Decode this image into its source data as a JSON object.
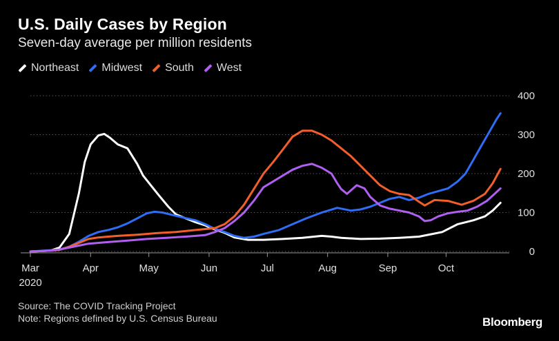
{
  "header": {
    "title": "U.S. Daily Cases by Region",
    "subtitle": "Seven-day average per million residents"
  },
  "footer": {
    "source": "Source: The COVID Tracking Project",
    "note": "Note: Regions defined by U.S. Census Bureau",
    "brand": "Bloomberg"
  },
  "chart_data": {
    "type": "line",
    "title": "U.S. Daily Cases by Region",
    "subtitle": "Seven-day average per million residents",
    "xlabel": "",
    "ylabel": "",
    "x_unit": "days since 2020-03-01",
    "xlim": [
      0,
      243
    ],
    "ylim": [
      0,
      400
    ],
    "yticks": [
      0,
      100,
      200,
      300,
      400
    ],
    "xticks": [
      {
        "day": 0,
        "label": "Mar",
        "sublabel": "2020"
      },
      {
        "day": 31,
        "label": "Apr"
      },
      {
        "day": 61,
        "label": "May"
      },
      {
        "day": 92,
        "label": "Jun"
      },
      {
        "day": 122,
        "label": "Jul"
      },
      {
        "day": 153,
        "label": "Aug"
      },
      {
        "day": 184,
        "label": "Sep"
      },
      {
        "day": 214,
        "label": "Oct"
      }
    ],
    "grid": "horizontal dotted",
    "legend_position": "top-left",
    "series": [
      {
        "name": "Northeast",
        "color": "#ffffff",
        "points": [
          [
            0,
            0
          ],
          [
            10,
            2
          ],
          [
            15,
            10
          ],
          [
            20,
            45
          ],
          [
            25,
            150
          ],
          [
            28,
            230
          ],
          [
            31,
            275
          ],
          [
            35,
            298
          ],
          [
            38,
            302
          ],
          [
            41,
            292
          ],
          [
            45,
            275
          ],
          [
            50,
            265
          ],
          [
            55,
            225
          ],
          [
            58,
            195
          ],
          [
            62,
            170
          ],
          [
            66,
            145
          ],
          [
            71,
            115
          ],
          [
            75,
            95
          ],
          [
            80,
            85
          ],
          [
            85,
            75
          ],
          [
            90,
            67
          ],
          [
            93,
            60
          ],
          [
            96,
            55
          ],
          [
            100,
            48
          ],
          [
            105,
            36
          ],
          [
            112,
            30
          ],
          [
            120,
            30
          ],
          [
            130,
            32
          ],
          [
            140,
            35
          ],
          [
            150,
            40
          ],
          [
            155,
            38
          ],
          [
            160,
            35
          ],
          [
            170,
            32
          ],
          [
            180,
            33
          ],
          [
            190,
            35
          ],
          [
            200,
            38
          ],
          [
            207,
            45
          ],
          [
            212,
            50
          ],
          [
            220,
            70
          ],
          [
            228,
            80
          ],
          [
            234,
            90
          ],
          [
            238,
            105
          ],
          [
            242,
            125
          ]
        ]
      },
      {
        "name": "Midwest",
        "color": "#2f6df6",
        "points": [
          [
            0,
            0
          ],
          [
            10,
            3
          ],
          [
            15,
            5
          ],
          [
            20,
            12
          ],
          [
            25,
            25
          ],
          [
            30,
            40
          ],
          [
            35,
            50
          ],
          [
            40,
            55
          ],
          [
            45,
            62
          ],
          [
            50,
            72
          ],
          [
            55,
            85
          ],
          [
            60,
            98
          ],
          [
            64,
            102
          ],
          [
            68,
            100
          ],
          [
            72,
            95
          ],
          [
            78,
            88
          ],
          [
            85,
            80
          ],
          [
            90,
            70
          ],
          [
            95,
            58
          ],
          [
            100,
            50
          ],
          [
            105,
            40
          ],
          [
            110,
            35
          ],
          [
            115,
            38
          ],
          [
            120,
            45
          ],
          [
            128,
            55
          ],
          [
            135,
            70
          ],
          [
            142,
            85
          ],
          [
            150,
            100
          ],
          [
            158,
            112
          ],
          [
            165,
            105
          ],
          [
            170,
            108
          ],
          [
            175,
            115
          ],
          [
            180,
            125
          ],
          [
            185,
            135
          ],
          [
            190,
            140
          ],
          [
            195,
            132
          ],
          [
            200,
            138
          ],
          [
            205,
            148
          ],
          [
            210,
            155
          ],
          [
            215,
            162
          ],
          [
            220,
            180
          ],
          [
            224,
            200
          ],
          [
            228,
            235
          ],
          [
            232,
            270
          ],
          [
            236,
            305
          ],
          [
            240,
            340
          ],
          [
            242,
            355
          ]
        ]
      },
      {
        "name": "South",
        "color": "#f25f2d",
        "points": [
          [
            0,
            0
          ],
          [
            10,
            2
          ],
          [
            15,
            4
          ],
          [
            20,
            12
          ],
          [
            25,
            22
          ],
          [
            30,
            32
          ],
          [
            35,
            36
          ],
          [
            40,
            38
          ],
          [
            45,
            40
          ],
          [
            55,
            43
          ],
          [
            65,
            47
          ],
          [
            75,
            50
          ],
          [
            85,
            55
          ],
          [
            95,
            60
          ],
          [
            100,
            70
          ],
          [
            105,
            90
          ],
          [
            110,
            120
          ],
          [
            115,
            160
          ],
          [
            120,
            200
          ],
          [
            125,
            230
          ],
          [
            130,
            262
          ],
          [
            135,
            295
          ],
          [
            140,
            310
          ],
          [
            145,
            310
          ],
          [
            150,
            300
          ],
          [
            155,
            285
          ],
          [
            160,
            265
          ],
          [
            165,
            245
          ],
          [
            170,
            220
          ],
          [
            175,
            195
          ],
          [
            180,
            170
          ],
          [
            185,
            155
          ],
          [
            190,
            148
          ],
          [
            195,
            145
          ],
          [
            200,
            128
          ],
          [
            203,
            118
          ],
          [
            208,
            132
          ],
          [
            215,
            130
          ],
          [
            222,
            120
          ],
          [
            228,
            130
          ],
          [
            234,
            148
          ],
          [
            238,
            175
          ],
          [
            242,
            212
          ]
        ]
      },
      {
        "name": "West",
        "color": "#b05ff0",
        "points": [
          [
            0,
            0
          ],
          [
            10,
            2
          ],
          [
            15,
            5
          ],
          [
            20,
            10
          ],
          [
            25,
            15
          ],
          [
            30,
            20
          ],
          [
            40,
            24
          ],
          [
            50,
            28
          ],
          [
            60,
            32
          ],
          [
            70,
            35
          ],
          [
            80,
            38
          ],
          [
            90,
            42
          ],
          [
            95,
            50
          ],
          [
            100,
            60
          ],
          [
            105,
            78
          ],
          [
            110,
            100
          ],
          [
            115,
            130
          ],
          [
            120,
            165
          ],
          [
            125,
            180
          ],
          [
            130,
            195
          ],
          [
            135,
            210
          ],
          [
            140,
            220
          ],
          [
            145,
            225
          ],
          [
            150,
            215
          ],
          [
            155,
            200
          ],
          [
            158,
            175
          ],
          [
            160,
            160
          ],
          [
            163,
            148
          ],
          [
            168,
            170
          ],
          [
            172,
            162
          ],
          [
            175,
            140
          ],
          [
            180,
            118
          ],
          [
            185,
            110
          ],
          [
            190,
            105
          ],
          [
            195,
            100
          ],
          [
            200,
            90
          ],
          [
            203,
            78
          ],
          [
            206,
            80
          ],
          [
            210,
            90
          ],
          [
            215,
            98
          ],
          [
            220,
            102
          ],
          [
            225,
            105
          ],
          [
            230,
            115
          ],
          [
            235,
            130
          ],
          [
            239,
            148
          ],
          [
            242,
            162
          ]
        ]
      }
    ]
  }
}
